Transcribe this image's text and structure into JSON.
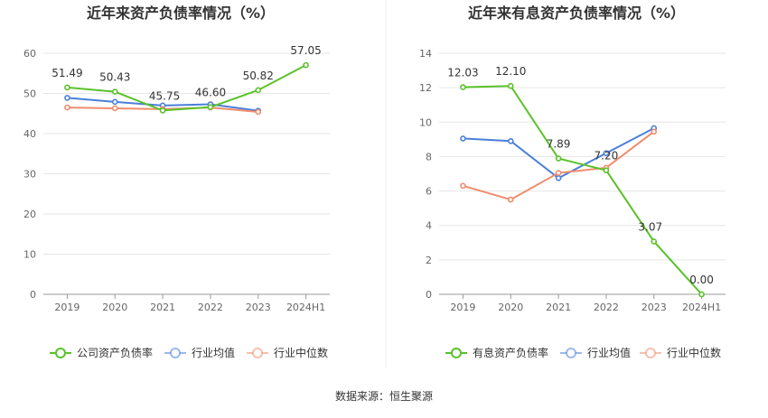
{
  "source_label": "数据来源：恒生聚源",
  "colors": {
    "company": "#5ac229",
    "avg": "#4a7fdb",
    "median": "#f08c6c",
    "grid": "#e6e6e6",
    "axis": "#999999",
    "divider": "#eeeeee"
  },
  "chart_data": [
    {
      "type": "line",
      "title": "近年来资产负债率情况（%）",
      "categories": [
        "2019",
        "2020",
        "2021",
        "2022",
        "2023",
        "2024H1"
      ],
      "ylim": [
        0,
        60
      ],
      "yticks": [
        0,
        10,
        20,
        30,
        40,
        50,
        60
      ],
      "grid": true,
      "legend_position": "bottom",
      "series": [
        {
          "name": "公司资产负债率",
          "key": "company",
          "values": [
            51.49,
            50.43,
            45.75,
            46.6,
            50.82,
            57.05
          ],
          "labels": [
            "51.49",
            "50.43",
            "45.75",
            "46.60",
            "50.82",
            "57.05"
          ]
        },
        {
          "name": "行业均值",
          "key": "avg",
          "values": [
            48.9,
            47.9,
            47.0,
            47.3,
            45.7,
            null
          ]
        },
        {
          "name": "行业中位数",
          "key": "median",
          "values": [
            46.5,
            46.3,
            46.1,
            46.5,
            45.4,
            null
          ]
        }
      ]
    },
    {
      "type": "line",
      "title": "近年来有息资产负债率情况（%）",
      "categories": [
        "2019",
        "2020",
        "2021",
        "2022",
        "2023",
        "2024H1"
      ],
      "ylim": [
        0,
        14
      ],
      "yticks": [
        0,
        2,
        4,
        6,
        8,
        10,
        12,
        14
      ],
      "grid": true,
      "legend_position": "bottom",
      "series": [
        {
          "name": "有息资产负债率",
          "key": "company",
          "values": [
            12.03,
            12.1,
            7.89,
            7.2,
            3.07,
            0.0
          ],
          "labels": [
            "12.03",
            "12.10",
            "7.89",
            "7.20",
            "3.07",
            "0.00"
          ]
        },
        {
          "name": "行业均值",
          "key": "avg",
          "values": [
            9.05,
            8.9,
            6.75,
            8.2,
            9.65,
            null
          ]
        },
        {
          "name": "行业中位数",
          "key": "median",
          "values": [
            6.3,
            5.5,
            7.05,
            7.35,
            9.45,
            null
          ]
        }
      ]
    }
  ]
}
